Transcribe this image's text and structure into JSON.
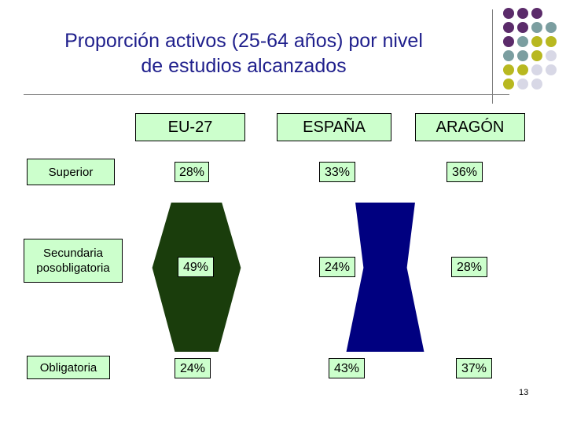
{
  "title_line1": "Proporción activos (25-64 años) por nivel",
  "title_line2": "de estudios alcanzados",
  "page_number": "13",
  "colors": {
    "eu_shape": "#1a3d0c",
    "espana_shape": "#000080",
    "label_fill": "#ccffcc",
    "dot_purple": "#5b2b6a",
    "dot_teal": "#7b9ea0",
    "dot_olive": "#b8b820",
    "dot_light": "#d8d8e6"
  },
  "chart_data": {
    "type": "table",
    "title": "Proporción activos (25-64 años) por nivel de estudios alcanzados",
    "columns": [
      "EU-27",
      "ESPAÑA",
      "ARAGÓN"
    ],
    "rows": [
      "Superior",
      "Secundaria posobligatoria",
      "Obligatoria"
    ],
    "row_labels": [
      [
        "Superior"
      ],
      [
        "Secundaria",
        "posobligatoria"
      ],
      [
        "Obligatoria"
      ]
    ],
    "series": [
      {
        "name": "EU-27",
        "values": [
          28,
          49,
          24
        ],
        "labels": [
          "28%",
          "49%",
          "24%"
        ]
      },
      {
        "name": "ESPAÑA",
        "values": [
          33,
          24,
          43
        ],
        "labels": [
          "33%",
          "24%",
          "43%"
        ]
      },
      {
        "name": "ARAGÓN",
        "values": [
          36,
          28,
          37
        ],
        "labels": [
          "36%",
          "28%",
          "37%"
        ]
      }
    ]
  }
}
